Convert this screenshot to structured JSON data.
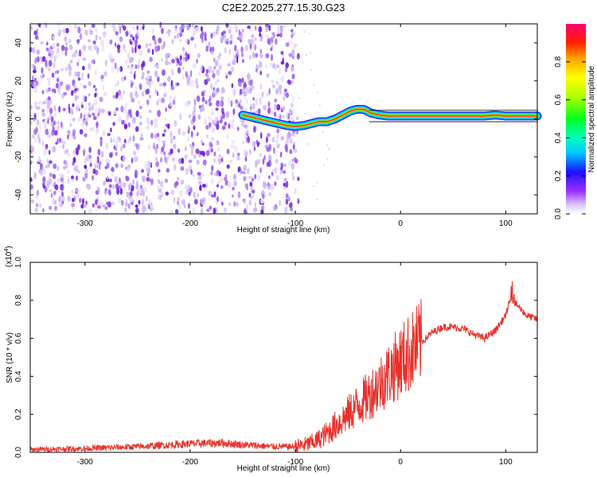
{
  "title": "C2E2.2025.277.15.30.G23",
  "colors": {
    "snr_line": "#e8302a",
    "track": "#ff3a1e",
    "noise_dark": "#6a1fe0",
    "noise_mid": "#9a5cf0",
    "noise_light": "#cdb6f8"
  },
  "chart_data": [
    {
      "type": "heatmap",
      "name": "spectrogram",
      "xlabel": "Height of straight line (km)",
      "ylabel": "Frequency (Hz)",
      "xlim": [
        -352,
        130
      ],
      "ylim": [
        -50,
        50
      ],
      "xticks": [
        -300,
        -200,
        -100,
        0,
        100
      ],
      "xtick_labels": [
        "-300",
        "-200",
        "-100",
        "0",
        "100"
      ],
      "yticks": [
        -40,
        -20,
        0,
        20,
        40
      ],
      "ytick_labels": [
        "-40",
        "-20",
        "0",
        "20",
        "40"
      ],
      "noise_region_x": [
        -352,
        -97
      ],
      "colorbar": {
        "label": "Normalized spectral amplitude",
        "range": [
          0,
          1
        ],
        "ticks": [
          0.0,
          0.2,
          0.4,
          0.6,
          0.8
        ],
        "tick_labels": [
          "0.0",
          "0.2",
          "0.4",
          "0.6",
          "0.8"
        ]
      },
      "signal_track": {
        "x": [
          -150,
          -135,
          -120,
          -108,
          -100,
          -92,
          -85,
          -78,
          -70,
          -62,
          -55,
          -48,
          -42,
          -35,
          -28,
          -20,
          -12,
          -5,
          0,
          10,
          20,
          40,
          60,
          80,
          90,
          100,
          110,
          130
        ],
        "y": [
          2,
          0,
          -2,
          -3.5,
          -4,
          -3.5,
          -2.5,
          -1.5,
          -1.5,
          0,
          2,
          4,
          5,
          5,
          3,
          2,
          1.5,
          1.5,
          1.5,
          1.5,
          1.5,
          1.5,
          1.5,
          1.5,
          2,
          1.5,
          1.5,
          1.5
        ]
      }
    },
    {
      "type": "line",
      "name": "snr",
      "xlabel": "Height of straight line (km)",
      "ylabel": "SNR (10 * v/v)",
      "multiplier_label": "(x10",
      "multiplier_exp": "4",
      "multiplier_close": ")",
      "xlim": [
        -352,
        130
      ],
      "ylim": [
        0,
        1.0
      ],
      "xticks": [
        -300,
        -200,
        -100,
        0,
        100
      ],
      "xtick_labels": [
        "-300",
        "-200",
        "-100",
        "0",
        "100"
      ],
      "yticks": [
        0.0,
        0.2,
        0.4,
        0.6,
        0.8,
        1.0
      ],
      "ytick_labels": [
        "0.0",
        "0.2",
        "0.4",
        "0.6",
        "0.8",
        "1.0"
      ],
      "series": [
        {
          "name": "SNR",
          "x": [
            -352,
            -300,
            -250,
            -200,
            -170,
            -150,
            -120,
            -100,
            -90,
            -80,
            -70,
            -60,
            -50,
            -40,
            -30,
            -20,
            -10,
            0,
            10,
            20,
            30,
            40,
            50,
            60,
            70,
            80,
            90,
            100,
            105,
            110,
            120,
            130
          ],
          "y": [
            0.015,
            0.02,
            0.03,
            0.045,
            0.05,
            0.04,
            0.03,
            0.03,
            0.04,
            0.06,
            0.1,
            0.15,
            0.2,
            0.25,
            0.3,
            0.36,
            0.42,
            0.48,
            0.53,
            0.58,
            0.63,
            0.66,
            0.66,
            0.65,
            0.62,
            0.6,
            0.64,
            0.72,
            0.82,
            0.78,
            0.72,
            0.7
          ]
        }
      ]
    }
  ]
}
